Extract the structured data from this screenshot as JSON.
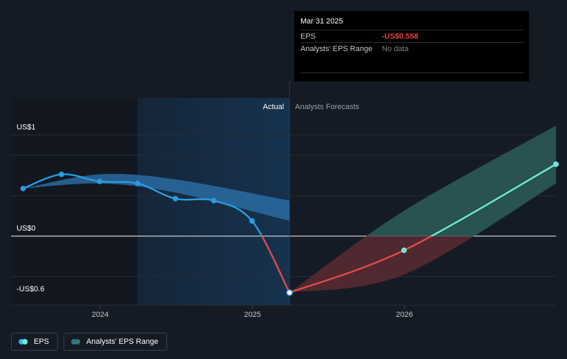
{
  "chart_data": {
    "type": "line",
    "y_axis_labels": [
      {
        "text": "US$1",
        "value": 1.0
      },
      {
        "text": "US$0",
        "value": 0.0
      },
      {
        "text": "-US$0.6",
        "value": -0.6
      }
    ],
    "x_ticks": [
      {
        "label": "2024",
        "x": "2024-01-01"
      },
      {
        "label": "2025",
        "x": "2025-01-01"
      },
      {
        "label": "2026",
        "x": "2026-01-01"
      }
    ],
    "ylim": [
      -0.6,
      1.2
    ],
    "xlim": [
      "2023-06-01",
      "2026-12-31"
    ],
    "regions": {
      "actual_label": "Actual",
      "forecast_label": "Analysts Forecasts",
      "split_date": "2025-03-31",
      "highlight_start": "2024-03-31"
    },
    "series": [
      {
        "name": "EPS",
        "kind": "actual",
        "points": [
          {
            "x": "2023-06-30",
            "y": 0.47
          },
          {
            "x": "2023-09-30",
            "y": 0.61
          },
          {
            "x": "2023-12-31",
            "y": 0.54
          },
          {
            "x": "2024-03-31",
            "y": 0.52
          },
          {
            "x": "2024-06-30",
            "y": 0.37
          },
          {
            "x": "2024-09-30",
            "y": 0.35
          },
          {
            "x": "2024-12-31",
            "y": 0.15
          },
          {
            "x": "2025-03-31",
            "y": -0.558
          }
        ]
      },
      {
        "name": "EPS",
        "kind": "forecast",
        "points": [
          {
            "x": "2025-03-31",
            "y": -0.558
          },
          {
            "x": "2025-12-31",
            "y": -0.14
          },
          {
            "x": "2026-12-31",
            "y": 0.71
          }
        ]
      },
      {
        "name": "Analysts' EPS Range",
        "kind": "past_range",
        "upper": [
          {
            "x": "2023-06-30",
            "y": 0.47
          },
          {
            "x": "2023-12-31",
            "y": 0.61
          },
          {
            "x": "2024-06-30",
            "y": 0.56
          },
          {
            "x": "2025-03-31",
            "y": 0.35
          }
        ],
        "lower": [
          {
            "x": "2023-06-30",
            "y": 0.47
          },
          {
            "x": "2023-12-31",
            "y": 0.52
          },
          {
            "x": "2024-06-30",
            "y": 0.43
          },
          {
            "x": "2025-03-31",
            "y": 0.15
          }
        ]
      },
      {
        "name": "Analysts' EPS Range",
        "kind": "forecast_range",
        "upper": [
          {
            "x": "2025-03-31",
            "y": -0.558
          },
          {
            "x": "2025-12-31",
            "y": 0.25
          },
          {
            "x": "2026-12-31",
            "y": 1.09
          }
        ],
        "lower": [
          {
            "x": "2025-03-31",
            "y": -0.558
          },
          {
            "x": "2025-12-31",
            "y": -0.38
          },
          {
            "x": "2026-12-31",
            "y": 0.52
          }
        ]
      }
    ]
  },
  "tooltip": {
    "date": "Mar 31 2025",
    "rows": [
      {
        "label": "EPS",
        "value": "-US$0.558"
      },
      {
        "label": "Analysts' EPS Range",
        "value": "No data"
      }
    ]
  },
  "legend": [
    {
      "label": "EPS",
      "color_a": "#2bb4f0",
      "color_b": "#6ee9d8"
    },
    {
      "label": "Analysts' EPS Range",
      "color_a": "#2f6f99",
      "color_b": "#2f7a6b"
    }
  ],
  "colors": {
    "background": "#151b24",
    "actual_shade": "#16304a",
    "eps_actual": "#2a9bdf",
    "eps_negative": "#e04a4a",
    "eps_forecast_positive": "#6ee9d8",
    "range_past": "#2a6fa8",
    "range_forecast": "#2c5d58",
    "range_forecast_negative": "#5a2a31"
  }
}
